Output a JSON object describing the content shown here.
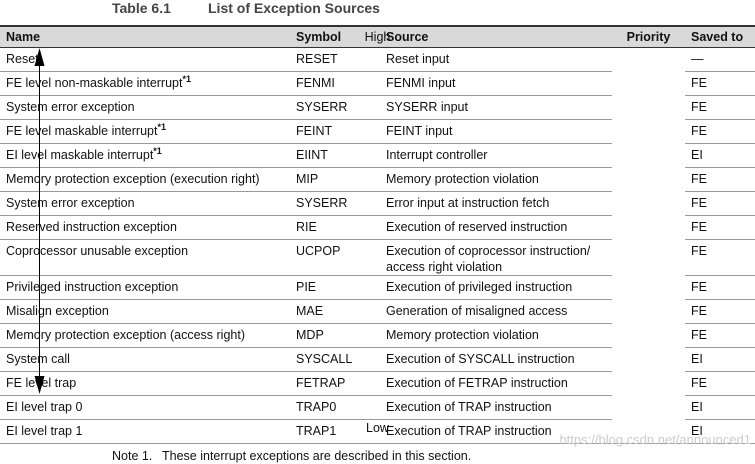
{
  "caption": {
    "number": "Table 6.1",
    "title": "List of Exception Sources"
  },
  "table": {
    "header": [
      "Name",
      "Symbol",
      "Source",
      "Priority",
      "Saved to"
    ],
    "priority_high": "High",
    "priority_low": "Low",
    "rows": [
      {
        "name": "Reset",
        "note": null,
        "symbol": "RESET",
        "source": "Reset input",
        "saved": "—"
      },
      {
        "name": "FE level non-maskable interrupt",
        "note": "*1",
        "symbol": "FENMI",
        "source": "FENMI input",
        "saved": "FE"
      },
      {
        "name": "System error exception",
        "note": null,
        "symbol": "SYSERR",
        "source": "SYSERR input",
        "saved": "FE"
      },
      {
        "name": "FE level maskable interrupt",
        "note": "*1",
        "symbol": "FEINT",
        "source": "FEINT input",
        "saved": "FE"
      },
      {
        "name": "EI level maskable interrupt",
        "note": "*1",
        "symbol": "EIINT",
        "source": "Interrupt controller",
        "saved": "EI"
      },
      {
        "name": "Memory protection exception (execution right)",
        "note": null,
        "symbol": "MIP",
        "source": "Memory protection violation",
        "saved": "FE"
      },
      {
        "name": "System error exception",
        "note": null,
        "symbol": "SYSERR",
        "source": "Error input at instruction fetch",
        "saved": "FE"
      },
      {
        "name": "Reserved instruction exception",
        "note": null,
        "symbol": "RIE",
        "source": "Execution of reserved instruction",
        "saved": "FE"
      },
      {
        "name": "Coprocessor unusable exception",
        "note": null,
        "symbol": "UCPOP",
        "source": "Execution of coprocessor instruction/ access right violation",
        "saved": "FE"
      },
      {
        "name": "Privileged instruction exception",
        "note": null,
        "symbol": "PIE",
        "source": "Execution of privileged instruction",
        "saved": "FE"
      },
      {
        "name": "Misalign exception",
        "note": null,
        "symbol": "MAE",
        "source": "Generation of misaligned access",
        "saved": "FE"
      },
      {
        "name": "Memory protection exception (access right)",
        "note": null,
        "symbol": "MDP",
        "source": "Memory protection violation",
        "saved": "FE"
      },
      {
        "name": "System call",
        "note": null,
        "symbol": "SYSCALL",
        "source": "Execution of SYSCALL instruction",
        "saved": "EI"
      },
      {
        "name": "FE level trap",
        "note": null,
        "symbol": "FETRAP",
        "source": "Execution of FETRAP instruction",
        "saved": "FE"
      },
      {
        "name": "EI level trap 0",
        "note": null,
        "symbol": "TRAP0",
        "source": "Execution of TRAP instruction",
        "saved": "EI"
      },
      {
        "name": "EI level trap 1",
        "note": null,
        "symbol": "TRAP1",
        "source": "Execution of TRAP instruction",
        "saved": "EI"
      }
    ]
  },
  "footnote": {
    "label": "Note 1.",
    "text": "These interrupt exceptions are described in this section."
  },
  "watermark": "https://blog.csdn.net/announced1"
}
